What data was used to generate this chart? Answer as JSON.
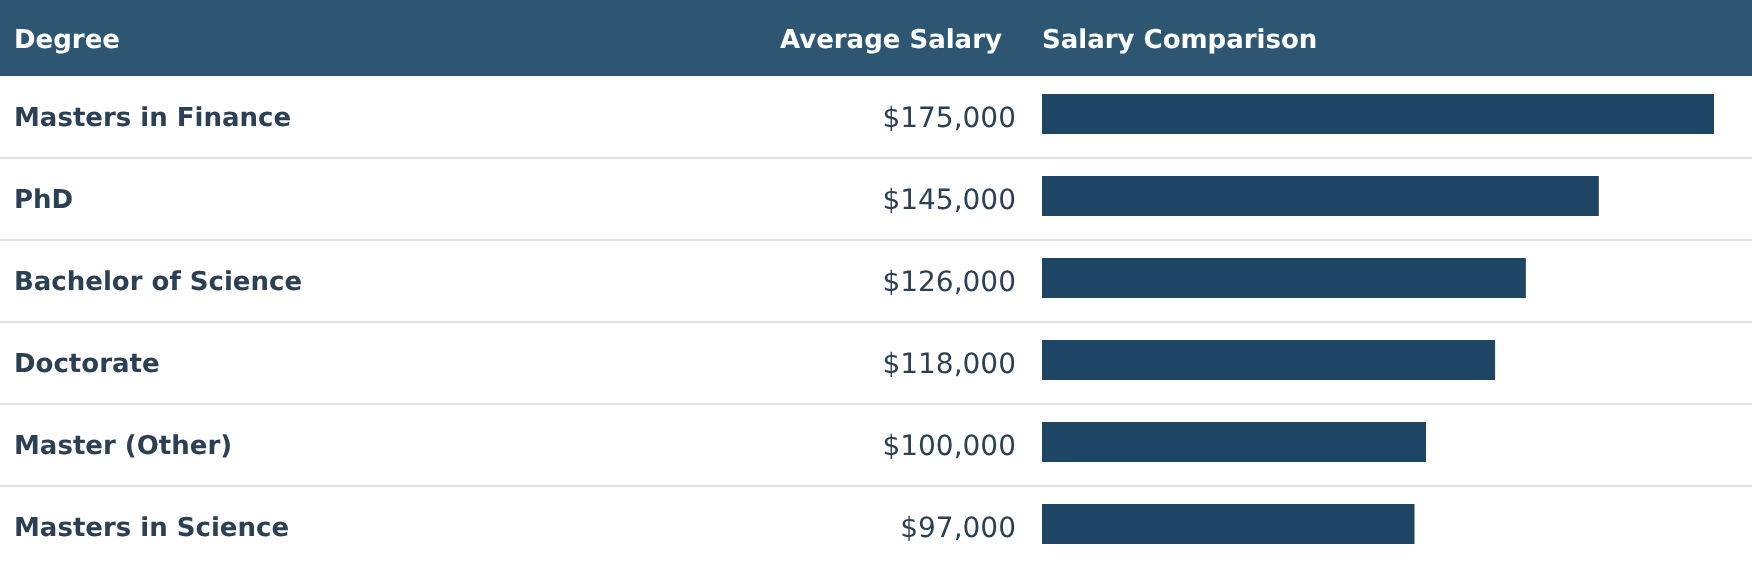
{
  "chart_data": {
    "type": "bar",
    "orientation": "horizontal",
    "ylabel": "Degree",
    "xlabel": "Salary Comparison",
    "annotations": [
      "Average Salary"
    ],
    "categories": [
      "Masters in Finance",
      "PhD",
      "Bachelor of Science",
      "Doctorate",
      "Master (Other)",
      "Masters in Science"
    ],
    "values": [
      175000,
      145000,
      126000,
      118000,
      100000,
      97000
    ],
    "value_labels": [
      "$175,000",
      "$145,000",
      "$126,000",
      "$118,000",
      "$100,000",
      "$97,000"
    ],
    "color": "#1f4564",
    "tick_labels": "y"
  }
}
